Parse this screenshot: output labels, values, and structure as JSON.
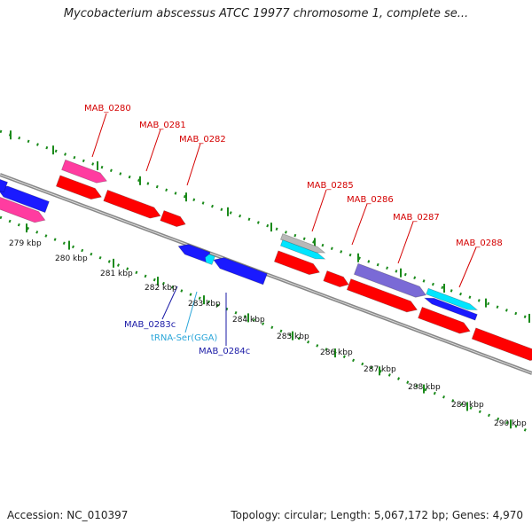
{
  "title": "Mycobacterium abscessus ATCC 19977 chromosome 1, complete se...",
  "footer": {
    "accession": "Accession: NC_010397",
    "summary": "Topology: circular; Length: 5,067,172 bp; Genes: 4,970"
  },
  "colors": {
    "cds_forward": "#ff0000",
    "cds_reverse": "#1a1aff",
    "pink": "#ff3ca0",
    "purple": "#7a6ad6",
    "cyan": "#00e5ff",
    "gray": "#b8b8b8",
    "ruler": "#1a8a1a",
    "backbone": "#888888",
    "label_forward": "#d40000",
    "label_reverse": "#1a1aa6",
    "label_trna": "#2aa6d9"
  },
  "labels": {
    "forward": [
      "MAB_0280",
      "MAB_0281",
      "MAB_0282",
      "MAB_0285",
      "MAB_0286",
      "MAB_0287",
      "MAB_0288"
    ],
    "reverse": [
      "MAB_0283c",
      "MAB_0284c"
    ],
    "trna": "tRNA-Ser(GGA)"
  },
  "ticks": [
    "279 kbp",
    "280 kbp",
    "281 kbp",
    "282 kbp",
    "283 kbp",
    "284 kbp",
    "285 kbp",
    "286 kbp",
    "287 kbp",
    "288 kbp",
    "289 kbp",
    "290 kbp"
  ]
}
